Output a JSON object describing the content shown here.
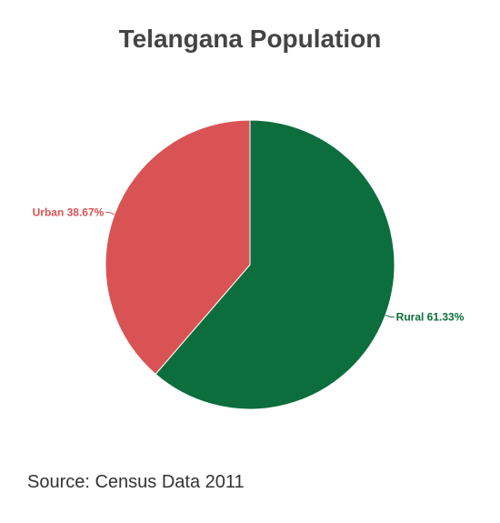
{
  "chart_data": {
    "type": "pie",
    "title": "Telangana Population",
    "slices": [
      {
        "label": "Rural",
        "value": 61.33,
        "display": "Rural 61.33%",
        "color": "#0b6e3c"
      },
      {
        "label": "Urban",
        "value": 38.67,
        "display": "Urban 38.67%",
        "color": "#d95355"
      }
    ],
    "start_angle_deg": 0,
    "direction": "clockwise",
    "legend": "none"
  },
  "footer": {
    "source": "Source: Census Data 2011"
  }
}
